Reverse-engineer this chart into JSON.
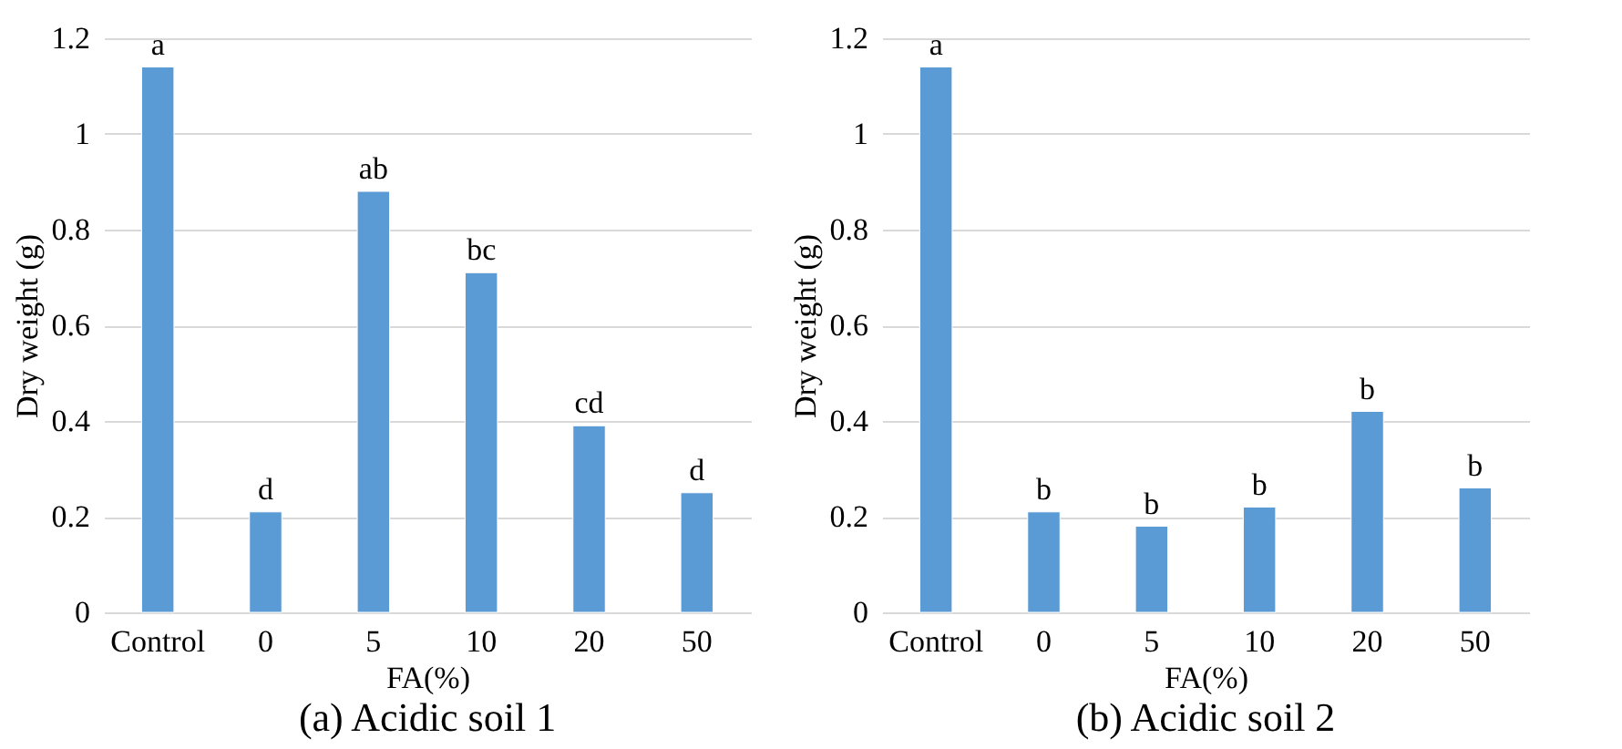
{
  "chart_data": [
    {
      "type": "bar",
      "title": "(a) Acidic soil 1",
      "xlabel": "FA(%)",
      "ylabel": "Dry weight (g)",
      "categories": [
        "Control",
        "0",
        "5",
        "10",
        "20",
        "50"
      ],
      "values": [
        1.14,
        0.21,
        0.88,
        0.71,
        0.39,
        0.25
      ],
      "color": "#5b9bd5",
      "ylim": [
        0,
        1.2
      ],
      "yticks": [
        0,
        0.2,
        0.4,
        0.6,
        0.8,
        1,
        1.2
      ],
      "grid": "y",
      "annotations": [
        {
          "text": "a",
          "x": "Control",
          "y": 1.14
        },
        {
          "text": "d",
          "x": "0",
          "y": 0.21
        },
        {
          "text": "ab",
          "x": "5",
          "y": 0.88
        },
        {
          "text": "bc",
          "x": "10",
          "y": 0.71
        },
        {
          "text": "cd",
          "x": "20",
          "y": 0.39
        },
        {
          "text": "d",
          "x": "50",
          "y": 0.25
        }
      ]
    },
    {
      "type": "bar",
      "title": "(b) Acidic soil 2",
      "xlabel": "FA(%)",
      "ylabel": "Dry weight (g)",
      "categories": [
        "Control",
        "0",
        "5",
        "10",
        "20",
        "50"
      ],
      "values": [
        1.14,
        0.21,
        0.18,
        0.22,
        0.42,
        0.26
      ],
      "color": "#5b9bd5",
      "ylim": [
        0,
        1.2
      ],
      "yticks": [
        0,
        0.2,
        0.4,
        0.6,
        0.8,
        1,
        1.2
      ],
      "grid": "y",
      "annotations": [
        {
          "text": "a",
          "x": "Control",
          "y": 1.14
        },
        {
          "text": "b",
          "x": "0",
          "y": 0.21
        },
        {
          "text": "b",
          "x": "5",
          "y": 0.18
        },
        {
          "text": "b",
          "x": "10",
          "y": 0.22
        },
        {
          "text": "b",
          "x": "20",
          "y": 0.42
        },
        {
          "text": "b",
          "x": "50",
          "y": 0.26
        }
      ]
    }
  ]
}
